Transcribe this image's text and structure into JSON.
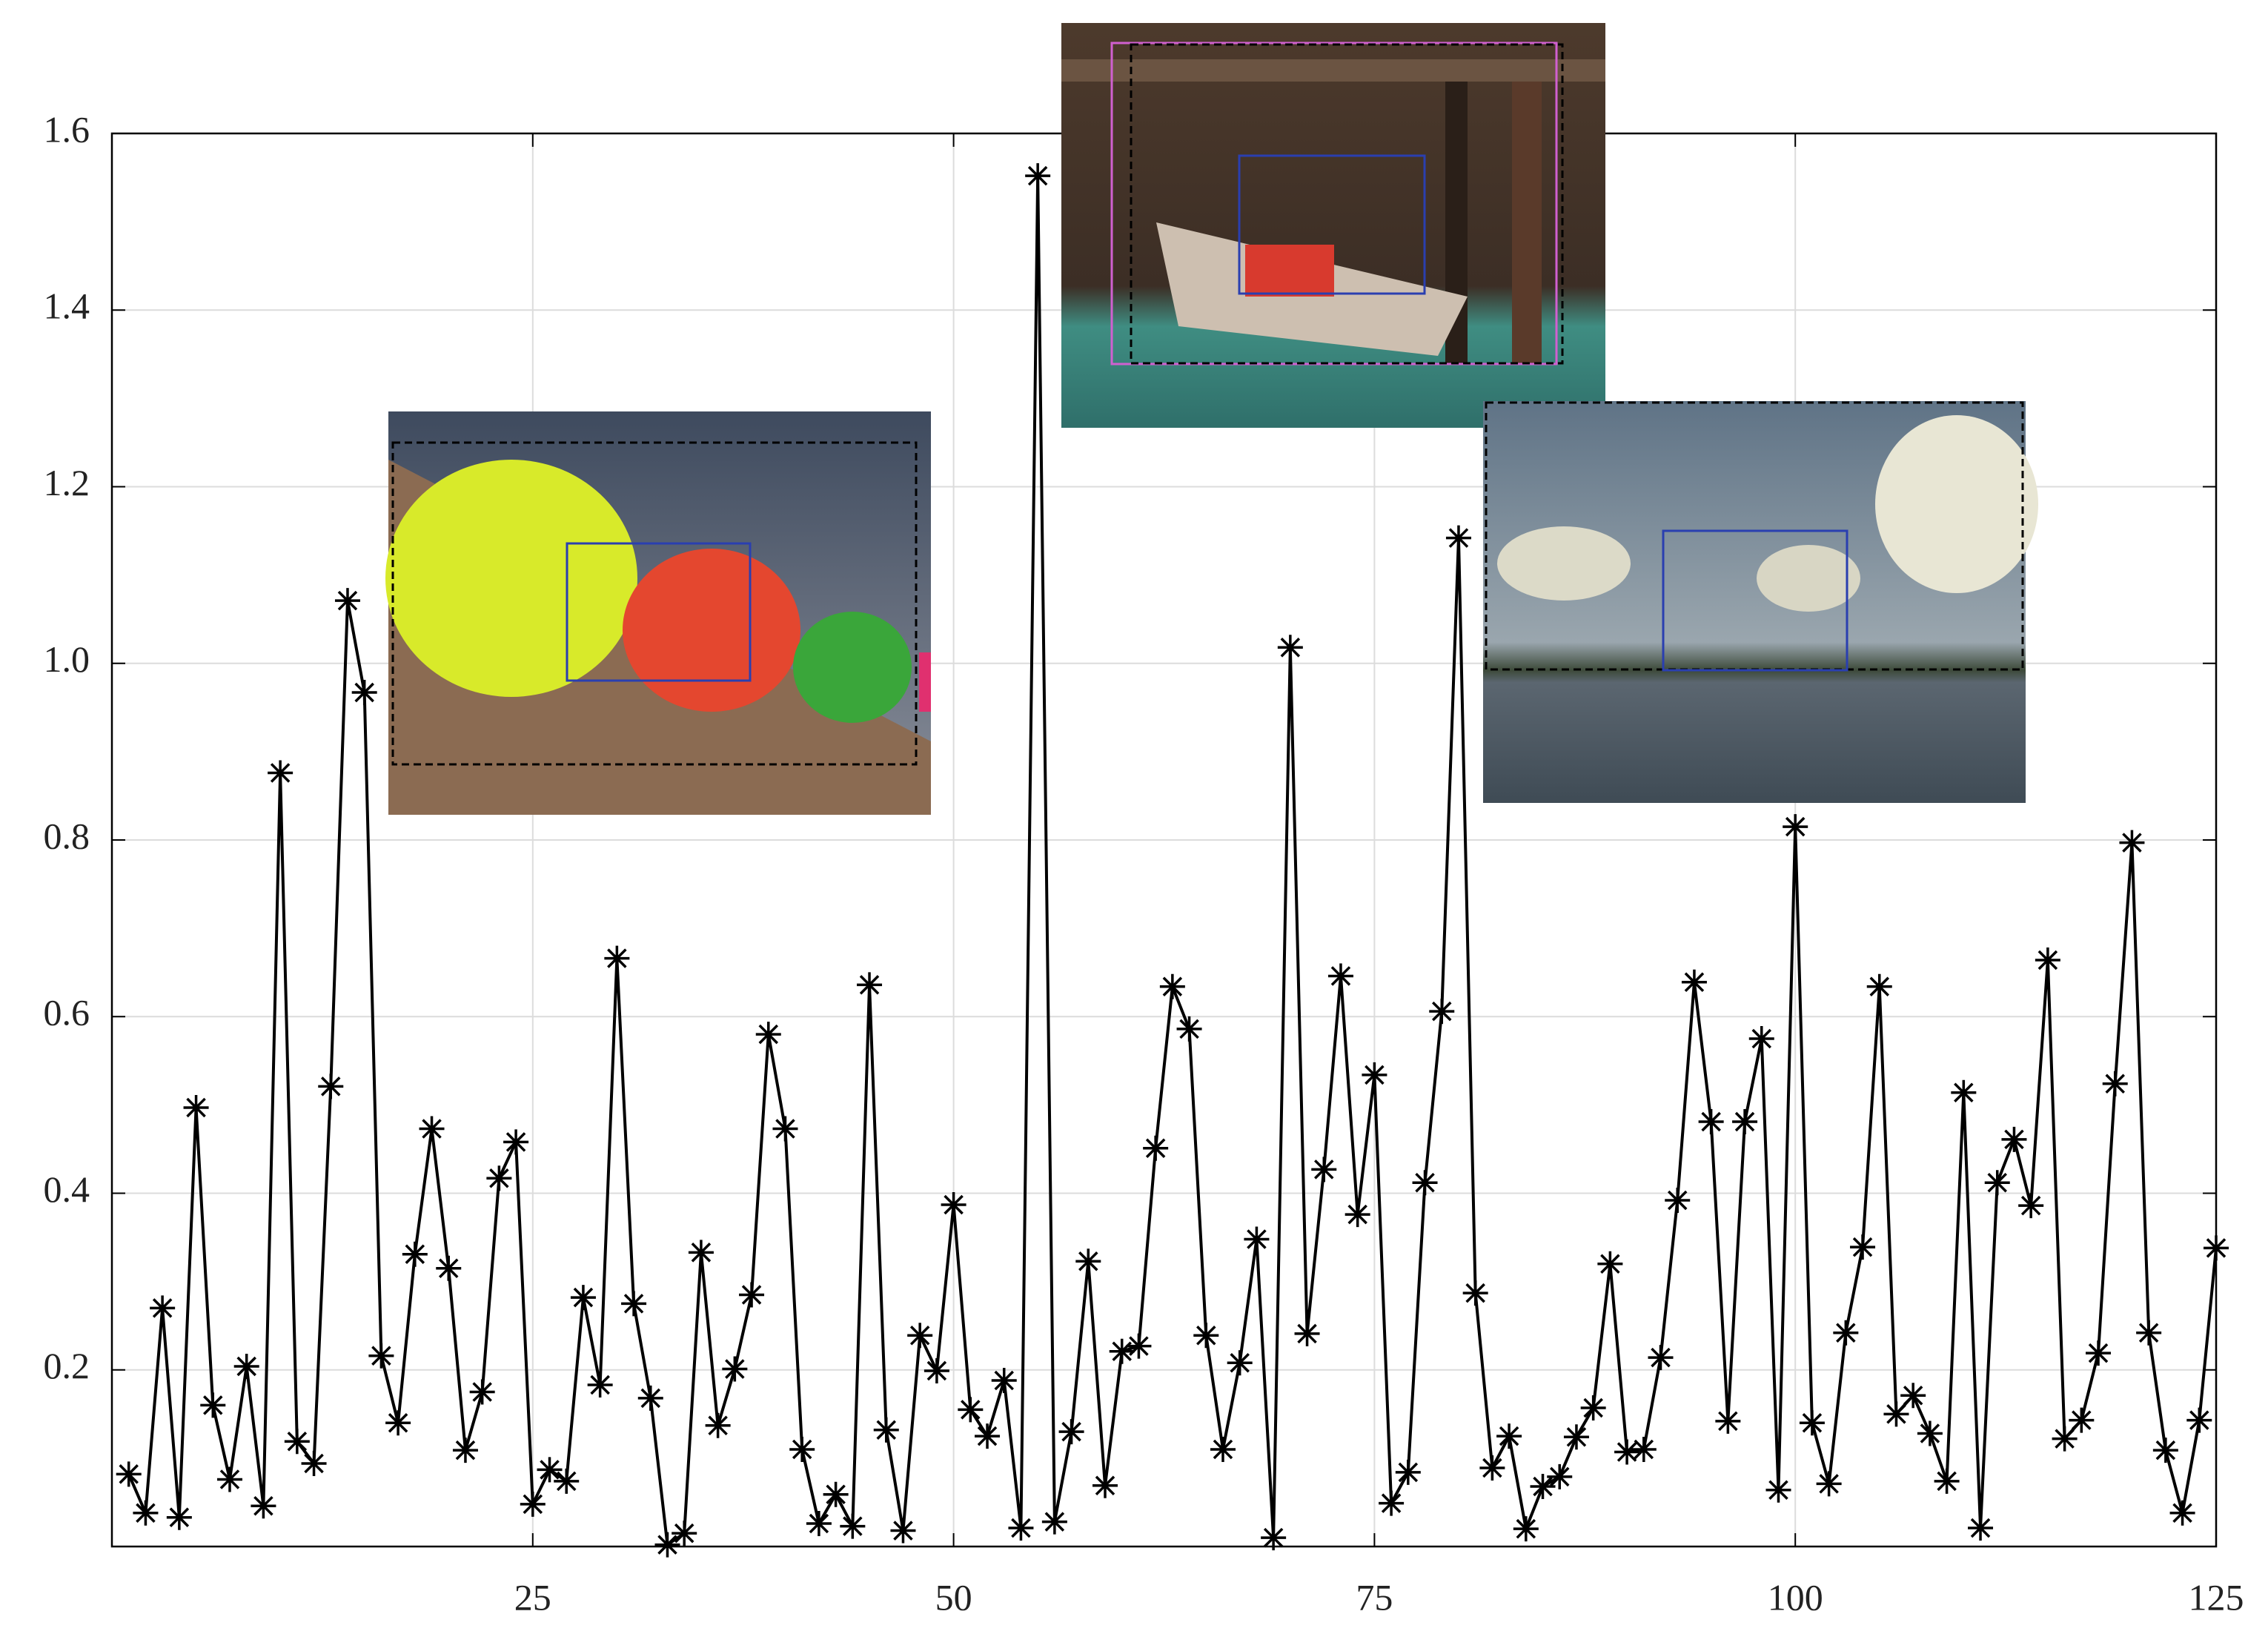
{
  "chart_data": {
    "type": "line",
    "x": [
      1,
      2,
      3,
      4,
      5,
      6,
      7,
      8,
      9,
      10,
      11,
      12,
      13,
      14,
      15,
      16,
      17,
      18,
      19,
      20,
      21,
      22,
      23,
      24,
      25,
      26,
      27,
      28,
      29,
      30,
      31,
      32,
      33,
      34,
      35,
      36,
      37,
      38,
      39,
      40,
      41,
      42,
      43,
      44,
      45,
      46,
      47,
      48,
      49,
      50,
      51,
      52,
      53,
      54,
      55,
      56,
      57,
      58,
      59,
      60,
      61,
      62,
      63,
      64,
      65,
      66,
      67,
      68,
      69,
      70,
      71,
      72,
      73,
      74,
      75,
      76,
      77,
      78,
      79,
      80,
      81,
      82,
      83,
      84,
      85,
      86,
      87,
      88,
      89,
      90,
      91,
      92,
      93,
      94,
      95,
      96,
      97,
      98,
      99,
      100,
      101,
      102,
      103,
      104,
      105,
      106,
      107,
      108,
      109,
      110,
      111,
      112,
      113,
      114,
      115,
      116,
      117,
      118,
      119,
      120,
      121,
      122,
      123,
      124,
      125
    ],
    "values": [
      0.082,
      0.038,
      0.27,
      0.033,
      0.497,
      0.16,
      0.076,
      0.204,
      0.046,
      0.876,
      0.119,
      0.094,
      0.521,
      1.071,
      0.967,
      0.216,
      0.14,
      0.331,
      0.473,
      0.315,
      0.109,
      0.175,
      0.417,
      0.458,
      0.048,
      0.087,
      0.074,
      0.282,
      0.183,
      0.666,
      0.275,
      0.168,
      0.002,
      0.015,
      0.333,
      0.137,
      0.201,
      0.285,
      0.58,
      0.473,
      0.11,
      0.026,
      0.059,
      0.023,
      0.636,
      0.132,
      0.018,
      0.239,
      0.199,
      0.387,
      0.155,
      0.125,
      0.188,
      0.021,
      1.552,
      0.028,
      0.13,
      0.323,
      0.069,
      0.221,
      0.227,
      0.451,
      0.634,
      0.586,
      0.239,
      0.11,
      0.208,
      0.348,
      0.01,
      1.018,
      0.241,
      0.427,
      0.646,
      0.376,
      0.534,
      0.049,
      0.084,
      0.412,
      0.606,
      1.142,
      0.287,
      0.089,
      0.125,
      0.02,
      0.068,
      0.079,
      0.124,
      0.157,
      0.32,
      0.107,
      0.11,
      0.214,
      0.392,
      0.639,
      0.481,
      0.142,
      0.481,
      0.575,
      0.064,
      0.815,
      0.14,
      0.071,
      0.242,
      0.339,
      0.634,
      0.15,
      0.171,
      0.128,
      0.074,
      0.514,
      0.021,
      0.412,
      0.461,
      0.386,
      0.664,
      0.122,
      0.143,
      0.219,
      0.524,
      0.797,
      0.242,
      0.109,
      0.038,
      0.143,
      0.338
    ],
    "color": "#000000",
    "xlim": [
      0,
      125
    ],
    "xticks": [
      25,
      50,
      75,
      100,
      125
    ],
    "ylim": [
      0,
      1.6
    ],
    "yticks": [
      0.2,
      0.4,
      0.6,
      0.8,
      {
        "value": 1,
        "label": "1.0"
      },
      1.2,
      1.4,
      1.6
    ],
    "grid": true
  }
}
